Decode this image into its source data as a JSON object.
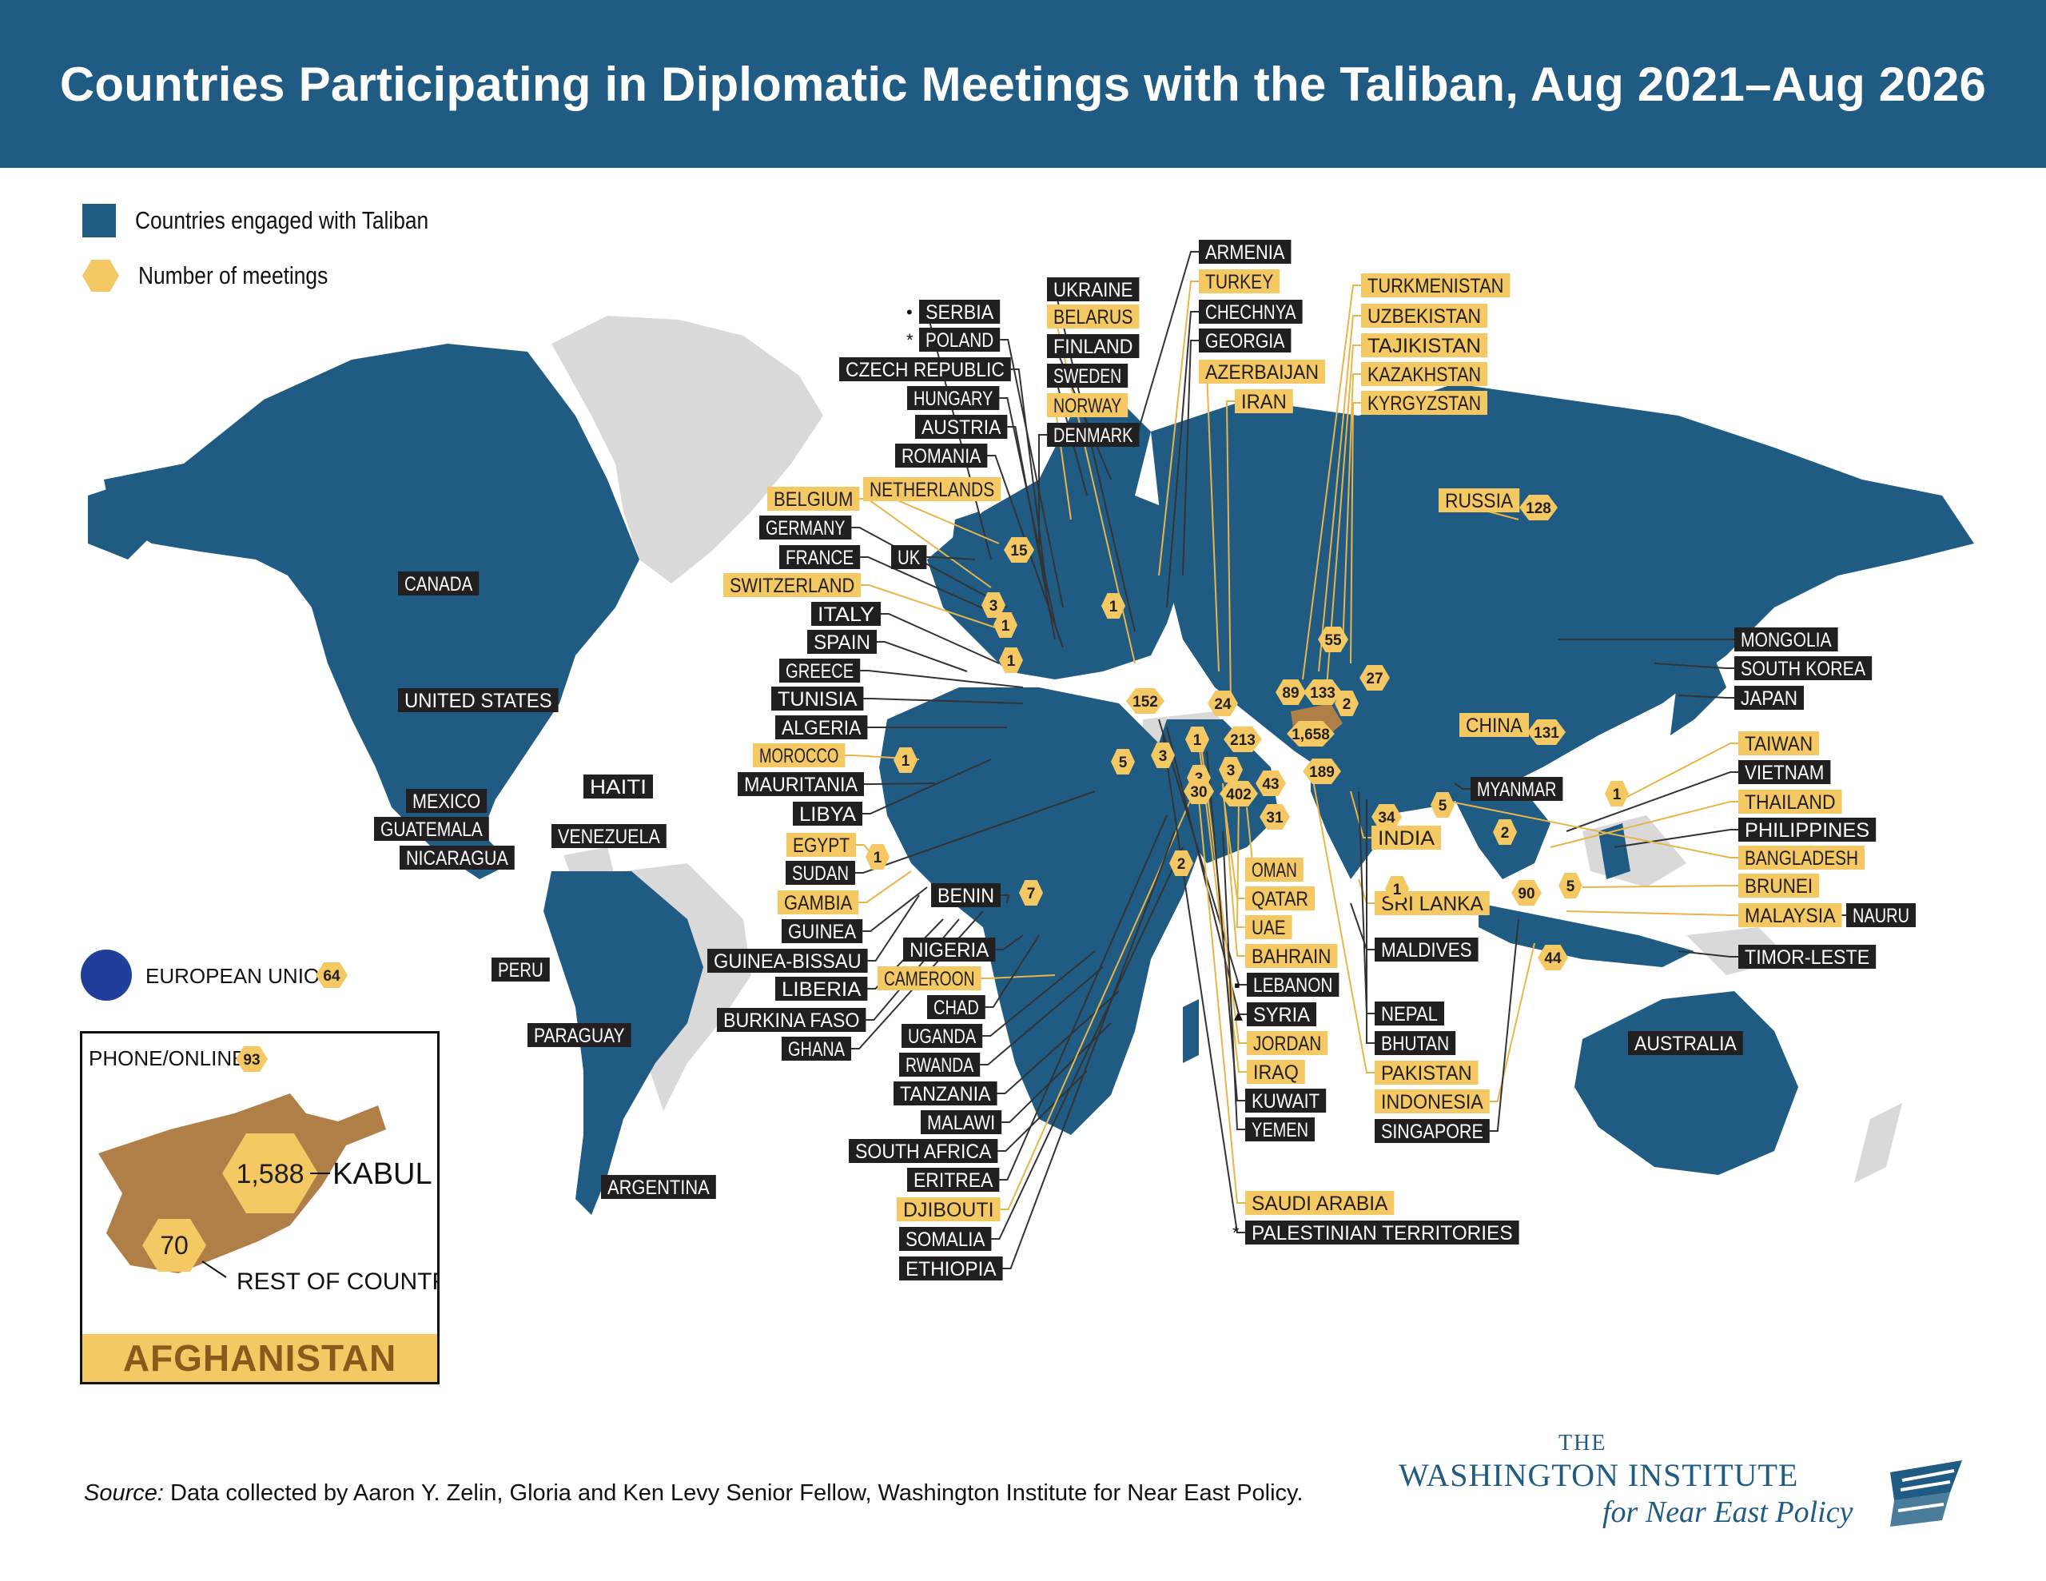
{
  "header": {
    "title": "Countries Participating in Diplomatic Meetings with the Taliban, Aug 2021–Aug 2026"
  },
  "legend": {
    "engaged": "Countries engaged with Taliban",
    "meetings": "Number of meetings",
    "engaged_color": "#1f5b82",
    "meeting_color": "#f4c862",
    "unengaged_color": "#d9d9d9"
  },
  "labels": [
    {
      "text": "ARMENIA",
      "style": "dark"
    },
    {
      "text": "TURKEY",
      "style": "gold"
    },
    {
      "text": "CHECHNYA",
      "style": "dark"
    },
    {
      "text": "GEORGIA",
      "style": "dark"
    },
    {
      "text": "AZERBAIJAN",
      "style": "gold"
    },
    {
      "text": "IRAN",
      "style": "gold"
    },
    {
      "text": "UKRAINE",
      "style": "dark"
    },
    {
      "text": "BELARUS",
      "style": "gold"
    },
    {
      "text": "FINLAND",
      "style": "dark"
    },
    {
      "text": "SWEDEN",
      "style": "dark"
    },
    {
      "text": "NORWAY",
      "style": "gold"
    },
    {
      "text": "DENMARK",
      "style": "dark"
    },
    {
      "text": "SERBIA",
      "style": "dark",
      "marker": "•"
    },
    {
      "text": "POLAND",
      "style": "dark",
      "marker": "*"
    },
    {
      "text": "CZECH REPUBLIC",
      "style": "dark"
    },
    {
      "text": "HUNGARY",
      "style": "dark"
    },
    {
      "text": "AUSTRIA",
      "style": "dark"
    },
    {
      "text": "ROMANIA",
      "style": "dark"
    },
    {
      "text": "NETHERLANDS",
      "style": "gold"
    },
    {
      "text": "BELGIUM",
      "style": "gold"
    },
    {
      "text": "GERMANY",
      "style": "dark"
    },
    {
      "text": "FRANCE",
      "style": "dark"
    },
    {
      "text": "UK",
      "style": "dark"
    },
    {
      "text": "SWITZERLAND",
      "style": "gold"
    },
    {
      "text": "ITALY",
      "style": "dark"
    },
    {
      "text": "SPAIN",
      "style": "dark"
    },
    {
      "text": "GREECE",
      "style": "dark"
    },
    {
      "text": "TUNISIA",
      "style": "dark"
    },
    {
      "text": "ALGERIA",
      "style": "dark"
    },
    {
      "text": "MOROCCO",
      "style": "gold"
    },
    {
      "text": "MAURITANIA",
      "style": "dark"
    },
    {
      "text": "LIBYA",
      "style": "dark"
    },
    {
      "text": "EGYPT",
      "style": "gold"
    },
    {
      "text": "SUDAN",
      "style": "dark"
    },
    {
      "text": "GAMBIA",
      "style": "gold"
    },
    {
      "text": "GUINEA",
      "style": "dark"
    },
    {
      "text": "GUINEA-BISSAU",
      "style": "dark"
    },
    {
      "text": "LIBERIA",
      "style": "dark"
    },
    {
      "text": "BURKINA FASO",
      "style": "dark"
    },
    {
      "text": "GHANA",
      "style": "dark"
    },
    {
      "text": "BENIN",
      "style": "dark"
    },
    {
      "text": "NIGERIA",
      "style": "dark"
    },
    {
      "text": "CAMEROON",
      "style": "gold"
    },
    {
      "text": "CHAD",
      "style": "dark"
    },
    {
      "text": "UGANDA",
      "style": "dark"
    },
    {
      "text": "RWANDA",
      "style": "dark"
    },
    {
      "text": "TANZANIA",
      "style": "dark"
    },
    {
      "text": "MALAWI",
      "style": "dark"
    },
    {
      "text": "SOUTH AFRICA",
      "style": "dark"
    },
    {
      "text": "ERITREA",
      "style": "dark"
    },
    {
      "text": "DJIBOUTI",
      "style": "gold"
    },
    {
      "text": "SOMALIA",
      "style": "dark"
    },
    {
      "text": "ETHIOPIA",
      "style": "dark"
    },
    {
      "text": "TURKMENISTAN",
      "style": "gold"
    },
    {
      "text": "UZBEKISTAN",
      "style": "gold"
    },
    {
      "text": "TAJIKISTAN",
      "style": "gold"
    },
    {
      "text": "KAZAKHSTAN",
      "style": "gold"
    },
    {
      "text": "KYRGYZSTAN",
      "style": "gold"
    },
    {
      "text": "RUSSIA",
      "style": "gold"
    },
    {
      "text": "MONGOLIA",
      "style": "dark"
    },
    {
      "text": "SOUTH KOREA",
      "style": "dark"
    },
    {
      "text": "JAPAN",
      "style": "dark"
    },
    {
      "text": "CHINA",
      "style": "gold"
    },
    {
      "text": "MYANMAR",
      "style": "dark"
    },
    {
      "text": "TAIWAN",
      "style": "gold"
    },
    {
      "text": "VIETNAM",
      "style": "dark"
    },
    {
      "text": "THAILAND",
      "style": "gold"
    },
    {
      "text": "PHILIPPINES",
      "style": "dark"
    },
    {
      "text": "BANGLADESH",
      "style": "gold"
    },
    {
      "text": "BRUNEI",
      "style": "gold"
    },
    {
      "text": "MALAYSIA",
      "style": "gold"
    },
    {
      "text": "NAURU",
      "style": "dark"
    },
    {
      "text": "TIMOR-LESTE",
      "style": "dark"
    },
    {
      "text": "INDIA",
      "style": "gold"
    },
    {
      "text": "SRI LANKA",
      "style": "gold"
    },
    {
      "text": "MALDIVES",
      "style": "dark"
    },
    {
      "text": "OMAN",
      "style": "gold"
    },
    {
      "text": "QATAR",
      "style": "gold"
    },
    {
      "text": "UAE",
      "style": "gold"
    },
    {
      "text": "BAHRAIN",
      "style": "gold"
    },
    {
      "text": "LEBANON",
      "style": "dark",
      "marker": "▪"
    },
    {
      "text": "SYRIA",
      "style": "dark",
      "marker": "▴"
    },
    {
      "text": "JORDAN",
      "style": "gold"
    },
    {
      "text": "IRAQ",
      "style": "gold"
    },
    {
      "text": "KUWAIT",
      "style": "dark"
    },
    {
      "text": "YEMEN",
      "style": "dark"
    },
    {
      "text": "NEPAL",
      "style": "dark"
    },
    {
      "text": "BHUTAN",
      "style": "dark"
    },
    {
      "text": "PAKISTAN",
      "style": "gold"
    },
    {
      "text": "INDONESIA",
      "style": "gold"
    },
    {
      "text": "SINGAPORE",
      "style": "dark"
    },
    {
      "text": "SAUDI ARABIA",
      "style": "gold"
    },
    {
      "text": "PALESTINIAN TERRITORIES",
      "style": "dark",
      "marker": "*"
    },
    {
      "text": "CANADA",
      "style": "dark"
    },
    {
      "text": "UNITED STATES",
      "style": "dark"
    },
    {
      "text": "MEXICO",
      "style": "dark"
    },
    {
      "text": "GUATEMALA",
      "style": "dark"
    },
    {
      "text": "NICARAGUA",
      "style": "dark"
    },
    {
      "text": "HAITI",
      "style": "dark"
    },
    {
      "text": "VENEZUELA",
      "style": "dark"
    },
    {
      "text": "PERU",
      "style": "dark"
    },
    {
      "text": "PARAGUAY",
      "style": "dark"
    },
    {
      "text": "ARGENTINA",
      "style": "dark"
    },
    {
      "text": "AUSTRALIA",
      "style": "dark"
    }
  ],
  "meetings": [
    {
      "count": "15"
    },
    {
      "count": "3"
    },
    {
      "count": "1"
    },
    {
      "count": "1"
    },
    {
      "count": "1"
    },
    {
      "count": "152"
    },
    {
      "count": "24"
    },
    {
      "count": "55"
    },
    {
      "count": "89"
    },
    {
      "count": "133"
    },
    {
      "count": "27"
    },
    {
      "count": "2"
    },
    {
      "count": "1,658"
    },
    {
      "count": "213"
    },
    {
      "count": "1"
    },
    {
      "count": "3"
    },
    {
      "count": "5"
    },
    {
      "count": "3"
    },
    {
      "count": "3"
    },
    {
      "count": "43"
    },
    {
      "count": "189"
    },
    {
      "count": "402"
    },
    {
      "count": "30"
    },
    {
      "count": "31"
    },
    {
      "count": "2"
    },
    {
      "count": "1"
    },
    {
      "count": "1"
    },
    {
      "count": "7"
    },
    {
      "count": "128"
    },
    {
      "count": "131"
    },
    {
      "count": "1"
    },
    {
      "count": "5"
    },
    {
      "count": "2"
    },
    {
      "count": "34"
    },
    {
      "count": "1"
    },
    {
      "count": "90"
    },
    {
      "count": "5"
    },
    {
      "count": "44"
    }
  ],
  "european_union": {
    "label": "EUROPEAN UNION",
    "count": "64"
  },
  "inset": {
    "phone_label": "PHONE/ONLINE",
    "phone_count": "93",
    "kabul_count": "1,588",
    "kabul_label": "KABUL",
    "rest_count": "70",
    "rest_label": "REST OF COUNTRY",
    "country": "AFGHANISTAN",
    "afghanistan_color": "#b07f47"
  },
  "source": {
    "prefix": "Source:",
    "text": " Data collected by Aaron Y. Zelin, Gloria and Ken Levy Senior Fellow, Washington Institute for Near East Policy."
  },
  "logo": {
    "the": "THE",
    "main": "WASHINGTON INSTITUTE",
    "sub": "for Near East Policy"
  }
}
